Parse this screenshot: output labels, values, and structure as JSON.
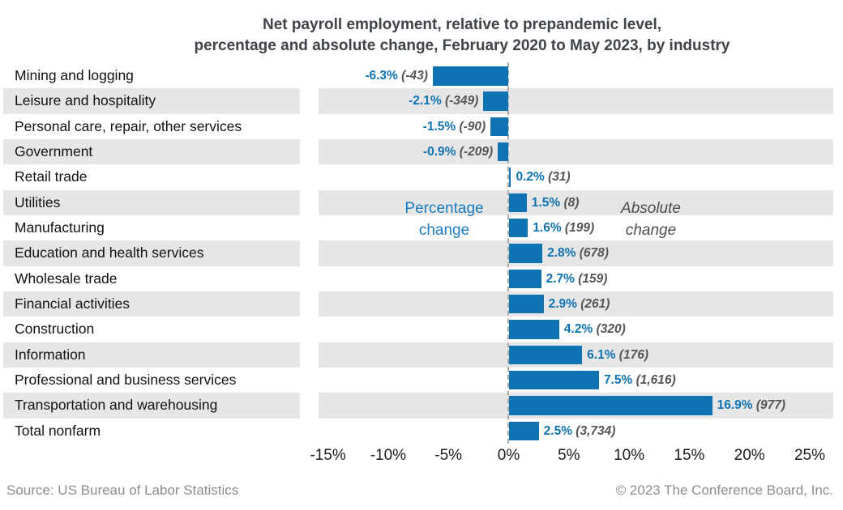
{
  "title": {
    "line1": "Net payroll employment, relative to prepandemic level,",
    "line2": "percentage and absolute change, February 2020 to May 2023, by industry"
  },
  "chart_data": {
    "type": "bar",
    "orientation": "horizontal",
    "title": "Net payroll employment, relative to prepandemic level, percentage and absolute change, February 2020 to May 2023, by industry",
    "categories": [
      "Mining and logging",
      "Leisure and hospitality",
      "Personal care, repair, other services",
      "Government",
      "Retail trade",
      "Utilities",
      "Manufacturing",
      "Education and health services",
      "Wholesale trade",
      "Financial activities",
      "Construction",
      "Information",
      "Professional and business services",
      "Transportation and warehousing",
      "Total nonfarm"
    ],
    "series": [
      {
        "name": "Percentage change",
        "unit": "%",
        "values": [
          -6.3,
          -2.1,
          -1.5,
          -0.9,
          0.2,
          1.5,
          1.6,
          2.8,
          2.7,
          2.9,
          4.2,
          6.1,
          7.5,
          16.9,
          2.5
        ]
      },
      {
        "name": "Absolute change",
        "unit": "thousands",
        "values": [
          -43,
          -349,
          -90,
          -209,
          31,
          8,
          199,
          678,
          159,
          261,
          320,
          176,
          1616,
          977,
          3734
        ]
      }
    ],
    "data_labels": [
      "-6.3% (-43)",
      "-2.1% (-349)",
      "-1.5% (-90)",
      "-0.9% (-209)",
      "0.2% (31)",
      "1.5% (8)",
      "1.6% (199)",
      "2.8% (678)",
      "2.7% (159)",
      "2.9% (261)",
      "4.2% (320)",
      "6.1% (176)",
      "7.5% (1,616)",
      "16.9% (977)",
      "2.5% (3,734)"
    ],
    "xticks": {
      "values": [
        -15,
        -10,
        -5,
        0,
        5,
        10,
        15,
        20,
        25
      ],
      "labels": [
        "-15%",
        "-10%",
        "-5%",
        "0%",
        "5%",
        "10%",
        "15%",
        "20%",
        "25%"
      ]
    },
    "xlim": [
      -15.8,
      27
    ],
    "zero_line": "dashed",
    "row_striping": "alternate gray on even rows (2nd,4th,...)",
    "legend_position": "none"
  },
  "annotations": {
    "percentage_change": {
      "line1": "Percentage",
      "line2": "change"
    },
    "absolute_change": {
      "line1": "Absolute",
      "line2": "change"
    }
  },
  "footer": {
    "source": "Source: US Bureau of Labor Statistics",
    "copyright": "© 2023 The Conference Board, Inc."
  },
  "colors": {
    "bar": "#0f72b2",
    "percent_label": "#0f72b2",
    "absolute_label": "#555555",
    "stripe": "#e6e6e6",
    "title": "#3f434a",
    "axis_text": "#1a1a1a",
    "annotation_blue": "#1b7cc1",
    "annotation_gray": "#4d4d4d",
    "zero_line": "#ababab",
    "footer_text": "#8d8d8d"
  }
}
